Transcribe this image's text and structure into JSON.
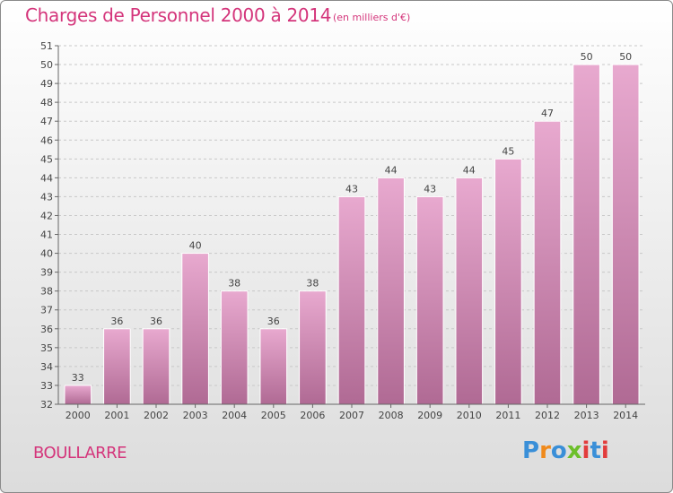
{
  "colors": {
    "accent": "#d4357b",
    "bar_light": "#e8a9cf",
    "bar_dark": "#b06a94",
    "logo_letters": [
      "#3a8fd8",
      "#f08a1c",
      "#3a8fd8",
      "#6cbf2a",
      "#e23c3c",
      "#3a8fd8",
      "#e23c3c"
    ]
  },
  "commune": "BOULLARRE",
  "logo_text": "Proxiti",
  "chart_data": {
    "type": "bar",
    "title": "Charges de Personnel 2000 à 2014",
    "subtitle": "(en milliers d'€)",
    "xlabel": "",
    "ylabel": "",
    "categories": [
      "2000",
      "2001",
      "2002",
      "2003",
      "2004",
      "2005",
      "2006",
      "2007",
      "2008",
      "2009",
      "2010",
      "2011",
      "2012",
      "2013",
      "2014"
    ],
    "values": [
      33,
      36,
      36,
      40,
      38,
      36,
      38,
      43,
      44,
      43,
      44,
      45,
      47,
      50,
      50
    ],
    "ylim": [
      32,
      51
    ],
    "yticks": [
      32,
      33,
      34,
      35,
      36,
      37,
      38,
      39,
      40,
      41,
      42,
      43,
      44,
      45,
      46,
      47,
      48,
      49,
      50,
      51
    ],
    "grid": true,
    "legend": "none"
  }
}
